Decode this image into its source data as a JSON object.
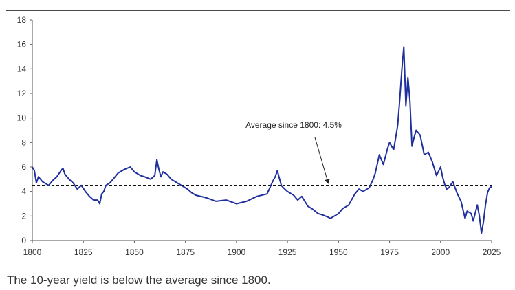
{
  "caption": "The 10-year yield is below the average since 1800.",
  "chart_data": {
    "type": "line",
    "title": "",
    "xlabel": "",
    "ylabel": "",
    "xlim": [
      1800,
      2025
    ],
    "ylim": [
      0,
      18
    ],
    "x_ticks": [
      "1800",
      "1825",
      "1850",
      "1875",
      "1900",
      "1925",
      "1950",
      "1975",
      "2000",
      "2025"
    ],
    "y_ticks": [
      "0",
      "2",
      "4",
      "6",
      "8",
      "10",
      "12",
      "14",
      "16",
      "18"
    ],
    "grid": false,
    "legend": "none",
    "series": [
      {
        "color": "#1f2f9e",
        "x": [
          1800,
          1801,
          1802,
          1803,
          1805,
          1808,
          1810,
          1812,
          1814,
          1815,
          1816,
          1818,
          1820,
          1822,
          1824,
          1826,
          1828,
          1830,
          1832,
          1833,
          1834,
          1835,
          1836,
          1838,
          1840,
          1842,
          1845,
          1848,
          1850,
          1853,
          1855,
          1858,
          1860,
          1861,
          1862,
          1863,
          1864,
          1866,
          1868,
          1870,
          1872,
          1874,
          1876,
          1878,
          1880,
          1885,
          1890,
          1895,
          1900,
          1905,
          1910,
          1915,
          1918,
          1919,
          1920,
          1921,
          1922,
          1923,
          1925,
          1928,
          1930,
          1932,
          1935,
          1937,
          1940,
          1942,
          1945,
          1946,
          1948,
          1950,
          1952,
          1955,
          1958,
          1960,
          1962,
          1965,
          1967,
          1968,
          1970,
          1972,
          1974,
          1975,
          1976,
          1977,
          1978,
          1979,
          1980,
          1981,
          1982,
          1983,
          1984,
          1985,
          1986,
          1987,
          1988,
          1990,
          1992,
          1994,
          1996,
          1998,
          2000,
          2001,
          2002,
          2003,
          2004,
          2006,
          2008,
          2010,
          2012,
          2013,
          2015,
          2016,
          2018,
          2019,
          2020,
          2021,
          2022,
          2023,
          2024,
          2025
        ],
        "y": [
          6.0,
          5.7,
          4.7,
          5.2,
          4.8,
          4.5,
          4.9,
          5.2,
          5.7,
          5.9,
          5.4,
          5.0,
          4.7,
          4.2,
          4.5,
          4.0,
          3.6,
          3.3,
          3.3,
          3.0,
          3.8,
          4.0,
          4.5,
          4.7,
          5.1,
          5.5,
          5.8,
          6.0,
          5.6,
          5.3,
          5.2,
          5.0,
          5.3,
          6.6,
          5.8,
          5.2,
          5.6,
          5.4,
          5.0,
          4.8,
          4.6,
          4.4,
          4.2,
          3.9,
          3.7,
          3.5,
          3.2,
          3.3,
          3.0,
          3.2,
          3.6,
          3.8,
          4.9,
          5.2,
          5.7,
          5.1,
          4.5,
          4.3,
          4.0,
          3.7,
          3.3,
          3.6,
          2.8,
          2.6,
          2.2,
          2.1,
          1.9,
          1.8,
          2.0,
          2.2,
          2.6,
          2.9,
          3.8,
          4.2,
          4.0,
          4.3,
          5.0,
          5.5,
          7.0,
          6.2,
          7.5,
          8.0,
          7.7,
          7.4,
          8.4,
          9.4,
          11.5,
          13.9,
          15.8,
          11.0,
          13.3,
          11.4,
          7.7,
          8.4,
          9.0,
          8.6,
          7.0,
          7.2,
          6.4,
          5.3,
          6.0,
          5.2,
          4.6,
          4.2,
          4.3,
          4.8,
          3.9,
          3.2,
          1.8,
          2.4,
          2.2,
          1.6,
          2.9,
          2.0,
          0.6,
          1.5,
          2.9,
          3.9,
          4.3,
          4.4
        ]
      },
      {
        "name": "Average since 1800: 4.5%",
        "style": "dashed",
        "color": "#111111",
        "x": [
          1800,
          2025
        ],
        "y": [
          4.5,
          4.5
        ]
      }
    ],
    "annotations": [
      {
        "text": "Average since 1800: 4.5%",
        "arrow_to": [
          1945,
          4.5
        ]
      }
    ]
  }
}
